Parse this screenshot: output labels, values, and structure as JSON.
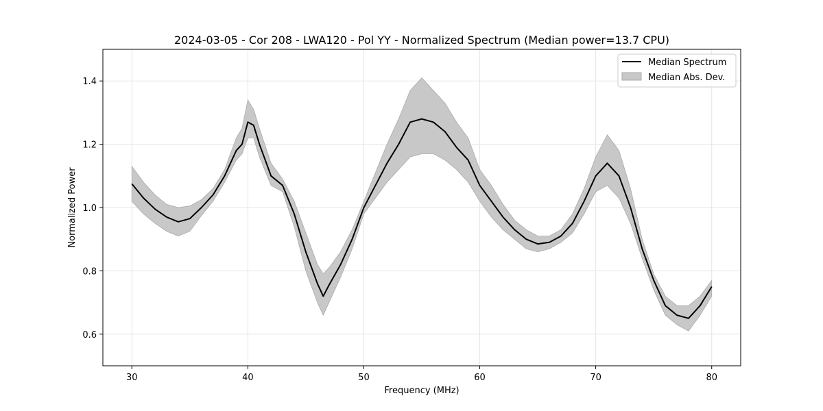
{
  "chart_data": {
    "type": "line",
    "title": "2024-03-05 - Cor 208 - LWA120 - Pol YY - Normalized Spectrum (Median power=13.7 CPU)",
    "xlabel": "Frequency (MHz)",
    "ylabel": "Normalized Power",
    "xlim": [
      27.5,
      82.5
    ],
    "ylim": [
      0.5,
      1.5
    ],
    "xticks": [
      30,
      40,
      50,
      60,
      70,
      80
    ],
    "yticks": [
      0.6,
      0.8,
      1.0,
      1.2,
      1.4
    ],
    "xtick_labels": [
      "30",
      "40",
      "50",
      "60",
      "70",
      "80"
    ],
    "ytick_labels": [
      "0.6",
      "0.8",
      "1.0",
      "1.2",
      "1.4"
    ],
    "grid": true,
    "legend_position": "top-right",
    "colors": {
      "line": "#000000",
      "band": "#c8c8c8",
      "band_edge": "#a9a9a9",
      "grid": "#e5e5e5"
    },
    "series": [
      {
        "name": "Median Spectrum",
        "kind": "line",
        "x": [
          30,
          31,
          32,
          33,
          34,
          35,
          36,
          37,
          38,
          39,
          39.5,
          40,
          40.5,
          41,
          42,
          43,
          44,
          45,
          46,
          46.5,
          47,
          48,
          49,
          50,
          51,
          52,
          53,
          54,
          55,
          56,
          57,
          58,
          59,
          60,
          61,
          62,
          63,
          64,
          65,
          66,
          67,
          68,
          69,
          70,
          71,
          72,
          73,
          74,
          75,
          76,
          77,
          78,
          79,
          80
        ],
        "y": [
          1.075,
          1.03,
          0.995,
          0.97,
          0.955,
          0.965,
          1.0,
          1.04,
          1.1,
          1.18,
          1.2,
          1.27,
          1.26,
          1.2,
          1.1,
          1.07,
          0.98,
          0.86,
          0.76,
          0.72,
          0.755,
          0.82,
          0.9,
          1.0,
          1.07,
          1.14,
          1.2,
          1.27,
          1.28,
          1.27,
          1.24,
          1.19,
          1.15,
          1.07,
          1.02,
          0.97,
          0.93,
          0.9,
          0.885,
          0.89,
          0.91,
          0.95,
          1.02,
          1.1,
          1.14,
          1.1,
          1.0,
          0.87,
          0.77,
          0.69,
          0.66,
          0.65,
          0.69,
          0.75
        ]
      },
      {
        "name": "Median Abs. Dev.",
        "kind": "band",
        "x": [
          30,
          31,
          32,
          33,
          34,
          35,
          36,
          37,
          38,
          39,
          39.5,
          40,
          40.5,
          41,
          42,
          43,
          44,
          45,
          46,
          46.5,
          47,
          48,
          49,
          50,
          51,
          52,
          53,
          54,
          55,
          56,
          57,
          58,
          59,
          60,
          61,
          62,
          63,
          64,
          65,
          66,
          67,
          68,
          69,
          70,
          71,
          72,
          73,
          74,
          75,
          76,
          77,
          78,
          79,
          80
        ],
        "lower": [
          1.02,
          0.98,
          0.95,
          0.925,
          0.91,
          0.925,
          0.975,
          1.02,
          1.08,
          1.15,
          1.17,
          1.22,
          1.22,
          1.16,
          1.07,
          1.05,
          0.94,
          0.8,
          0.7,
          0.66,
          0.7,
          0.78,
          0.87,
          0.98,
          1.03,
          1.08,
          1.12,
          1.16,
          1.17,
          1.17,
          1.15,
          1.12,
          1.08,
          1.02,
          0.97,
          0.93,
          0.9,
          0.87,
          0.86,
          0.87,
          0.89,
          0.92,
          0.98,
          1.05,
          1.07,
          1.03,
          0.95,
          0.84,
          0.74,
          0.66,
          0.63,
          0.61,
          0.66,
          0.72
        ],
        "upper": [
          1.13,
          1.08,
          1.04,
          1.01,
          1.0,
          1.005,
          1.025,
          1.06,
          1.12,
          1.22,
          1.25,
          1.34,
          1.31,
          1.25,
          1.14,
          1.09,
          1.02,
          0.92,
          0.82,
          0.79,
          0.81,
          0.86,
          0.93,
          1.02,
          1.11,
          1.2,
          1.28,
          1.37,
          1.41,
          1.37,
          1.33,
          1.27,
          1.22,
          1.12,
          1.07,
          1.01,
          0.96,
          0.93,
          0.91,
          0.91,
          0.93,
          0.98,
          1.06,
          1.16,
          1.23,
          1.18,
          1.06,
          0.9,
          0.79,
          0.72,
          0.69,
          0.69,
          0.72,
          0.77
        ]
      }
    ]
  }
}
